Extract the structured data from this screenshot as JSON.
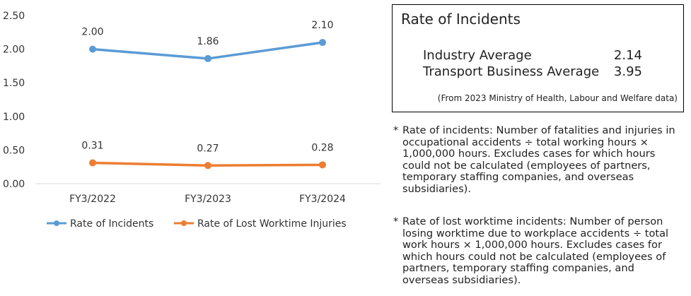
{
  "chart_data": {
    "type": "line",
    "categories": [
      "FY3/2022",
      "FY3/2023",
      "FY3/2024"
    ],
    "ylim": [
      0,
      2.5
    ],
    "yticks": [
      "0.00",
      "0.50",
      "1.00",
      "1.50",
      "2.00",
      "2.50"
    ],
    "grid": false,
    "legend_position": "bottom",
    "series": [
      {
        "name": "Rate of Incidents",
        "values": [
          2.0,
          1.86,
          2.1
        ],
        "labels": [
          "2.00",
          "1.86",
          "2.10"
        ],
        "color": "#5b9bd5"
      },
      {
        "name": "Rate of Lost Worktime Injuries",
        "values": [
          0.31,
          0.27,
          0.28
        ],
        "labels": [
          "0.31",
          "0.27",
          "0.28"
        ],
        "color": "#ed7d31"
      }
    ]
  },
  "rate_box": {
    "title": "Rate of Incidents",
    "rows": [
      {
        "label": "Industry Average",
        "value": "2.14"
      },
      {
        "label": "Transport Business Average",
        "value": "3.95"
      }
    ],
    "source": "(From 2023 Ministry of Health, Labour and Welfare data)"
  },
  "notes": [
    {
      "star": "*",
      "text": "Rate of incidents: Number of fatalities and injuries in occupational accidents ÷ total working hours × 1,000,000 hours. Excludes cases for which hours could not be calculated (employees of partners, temporary staffing companies, and overseas subsidiaries)."
    },
    {
      "star": "*",
      "text": "Rate of lost worktime incidents: Number of person losing worktime due to workplace accidents ÷ total work hours × 1,000,000 hours. Excludes cases for which hours could not be calculated (employees of partners, temporary staffing companies, and overseas subsidiaries)."
    }
  ]
}
